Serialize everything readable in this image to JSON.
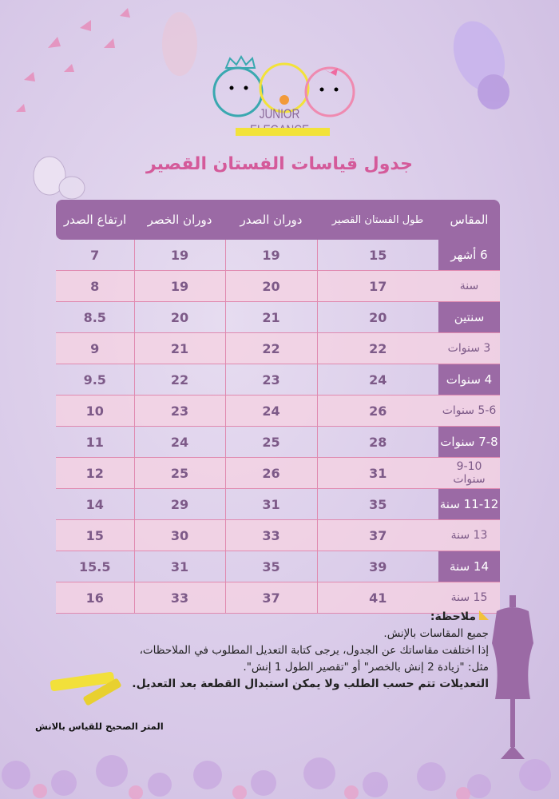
{
  "brand": {
    "name": "JUNIOR ELEGANCE"
  },
  "title": "جدول قياسات الفستان القصير",
  "table": {
    "headers": [
      "المقاس",
      "طول الفستان القصير",
      "دوران الصدر",
      "دوران الخصر",
      "ارتفاع الصدر"
    ],
    "rows": [
      {
        "size": "6 أشهر",
        "length": "15",
        "chest": "19",
        "waist": "19",
        "chest_height": "7",
        "highlight": true
      },
      {
        "size": "سنة",
        "length": "17",
        "chest": "20",
        "waist": "19",
        "chest_height": "8",
        "highlight": false
      },
      {
        "size": "سنتين",
        "length": "20",
        "chest": "21",
        "waist": "20",
        "chest_height": "8.5",
        "highlight": true
      },
      {
        "size": "3 سنوات",
        "length": "22",
        "chest": "22",
        "waist": "21",
        "chest_height": "9",
        "highlight": false
      },
      {
        "size": "4 سنوات",
        "length": "24",
        "chest": "23",
        "waist": "22",
        "chest_height": "9.5",
        "highlight": true
      },
      {
        "size": "5-6 سنوات",
        "length": "26",
        "chest": "24",
        "waist": "23",
        "chest_height": "10",
        "highlight": false
      },
      {
        "size": "7-8 سنوات",
        "length": "28",
        "chest": "25",
        "waist": "24",
        "chest_height": "11",
        "highlight": true
      },
      {
        "size": "9-10 سنوات",
        "length": "31",
        "chest": "26",
        "waist": "25",
        "chest_height": "12",
        "highlight": false
      },
      {
        "size": "11-12 سنة",
        "length": "35",
        "chest": "31",
        "waist": "29",
        "chest_height": "14",
        "highlight": true
      },
      {
        "size": "13 سنة",
        "length": "37",
        "chest": "33",
        "waist": "30",
        "chest_height": "15",
        "highlight": false
      },
      {
        "size": "14 سنة",
        "length": "39",
        "chest": "35",
        "waist": "31",
        "chest_height": "15.5",
        "highlight": true
      },
      {
        "size": "15 سنة",
        "length": "41",
        "chest": "37",
        "waist": "33",
        "chest_height": "16",
        "highlight": false
      }
    ]
  },
  "notes": {
    "heading": "ملاحظة:",
    "lines": [
      "جميع المقاسات بالإنش.",
      "إذا اختلفت مقاساتك عن الجدول، يرجى كتابة التعديل المطلوب في الملاحظات،",
      "مثل: \"زيادة 2 إنش بالخصر\" أو \"تقصير الطول 1 إنش\"."
    ],
    "bold_line": "التعديلات تتم حسب الطلب ولا يمكن استبدال القطعة بعد التعديل."
  },
  "tape_caption": "المتر الصحيح للقياس بالانش",
  "colors": {
    "header": "#9b6aa5",
    "title": "#d45a9a",
    "row_alt": "#f5d2e1",
    "grid": "#e08ab0"
  }
}
